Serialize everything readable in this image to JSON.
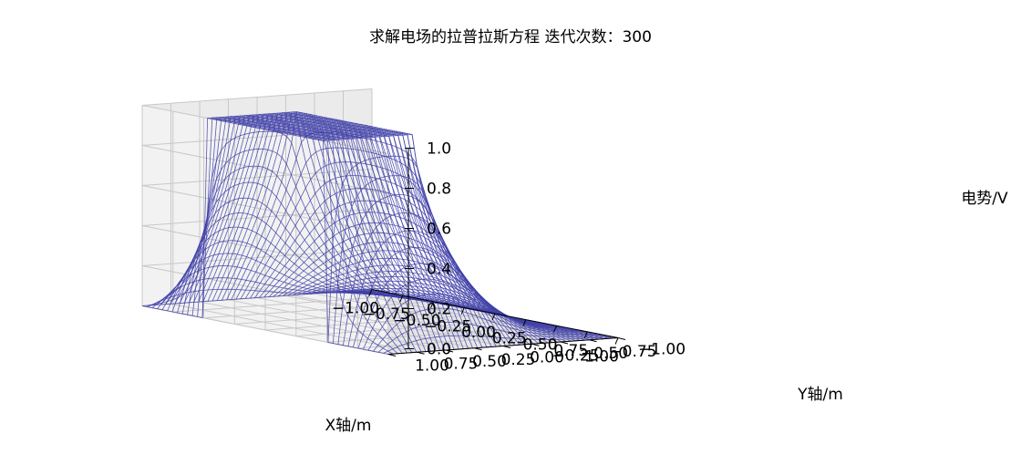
{
  "chart_data": {
    "type": "surface-wireframe",
    "title": "求解电场的拉普拉斯方程 迭代次数：300",
    "xlabel": "X轴/m",
    "ylabel": "Y轴/m",
    "zlabel": "电势/V",
    "xlim": [
      -1.0,
      1.0
    ],
    "ylim": [
      -1.0,
      1.0
    ],
    "zlim": [
      0.0,
      1.0
    ],
    "xticks": [
      "−1.00",
      "−0.75",
      "−0.50",
      "−0.25",
      "0.00",
      "0.25",
      "0.50",
      "0.75",
      "1.00"
    ],
    "yticks": [
      "−1.00",
      "−0.75",
      "−0.50",
      "−0.25",
      "0.00",
      "0.25",
      "0.50",
      "0.75",
      "1.00"
    ],
    "zticks": [
      "0.0",
      "0.2",
      "0.4",
      "0.6",
      "0.8",
      "1.0"
    ],
    "grid": true,
    "surface": {
      "function": "solution of Laplace equation, potential 1.0 V on top plateau region",
      "plateau_value": 1.0,
      "plateau_x_range": [
        -0.5,
        0.5
      ],
      "plateau_y_range": [
        0.2,
        1.0
      ],
      "boundary_value": 0.0,
      "iterations": 300,
      "grid_points": 50
    },
    "colors": {
      "wire": "#3f3fa8",
      "pane": "#f2f2f2",
      "grid": "#c8c8c8"
    }
  }
}
